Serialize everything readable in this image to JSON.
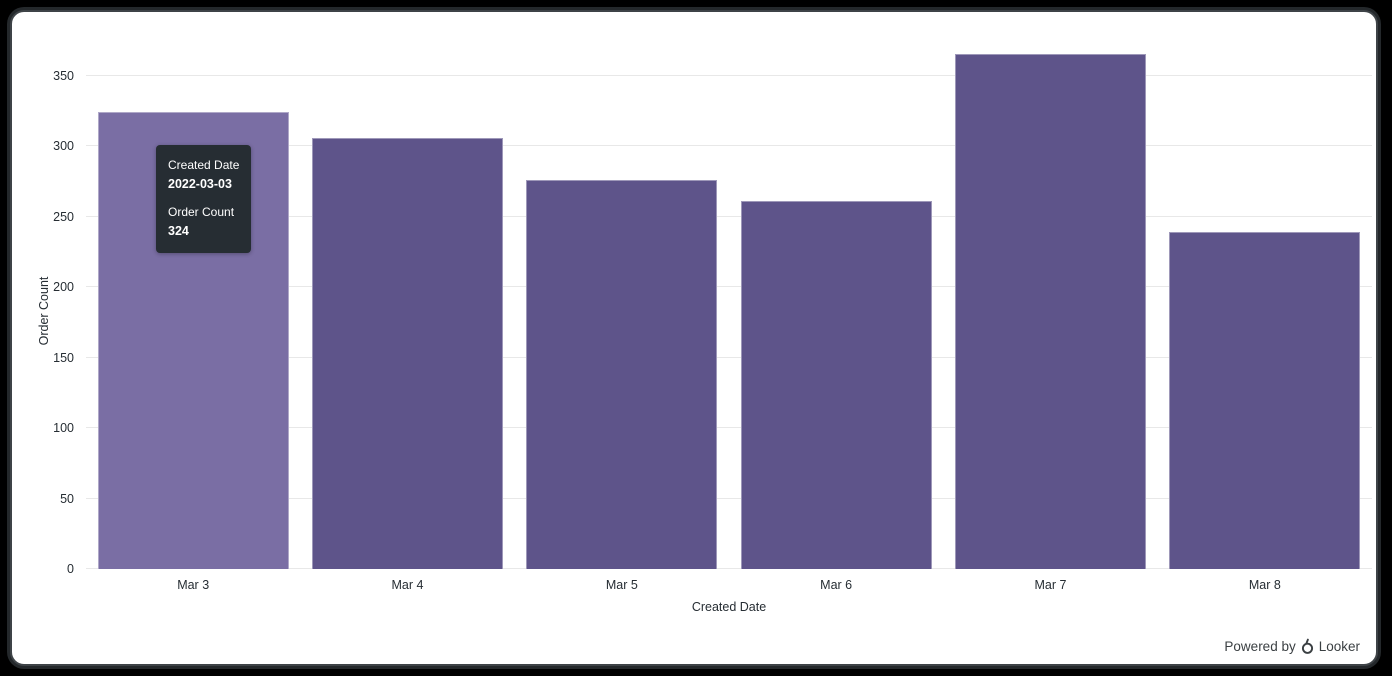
{
  "frame": {
    "background_color": "#000000",
    "card_background": "#FFFFFF",
    "card_border_color": "#3E4347"
  },
  "chart_data": {
    "type": "bar",
    "title": "",
    "categories": [
      "Mar 3",
      "Mar 4",
      "Mar 5",
      "Mar 6",
      "Mar 7",
      "Mar 8"
    ],
    "values": [
      324,
      306,
      276,
      261,
      365,
      239
    ],
    "series_name": "Order Count",
    "xlabel": "Created Date",
    "ylabel": "Order Count",
    "yticks": [
      0,
      50,
      100,
      150,
      200,
      250,
      300,
      350
    ],
    "ylim": [
      0,
      383
    ],
    "grid": true,
    "legend": "none",
    "bar_color": "#5E548A",
    "bar_hover_color": "#7A6EA4",
    "hovered_index": 0,
    "gridline_color": "#E8E8E8",
    "tick_label_color": "#262D33"
  },
  "tooltip": {
    "field1_label": "Created Date",
    "field1_value": "2022-03-03",
    "field2_label": "Order Count",
    "field2_value": "324",
    "background": "#262D33",
    "text_color": "#FFFFFF"
  },
  "footer": {
    "powered_by": "Powered by",
    "brand": "Looker"
  }
}
